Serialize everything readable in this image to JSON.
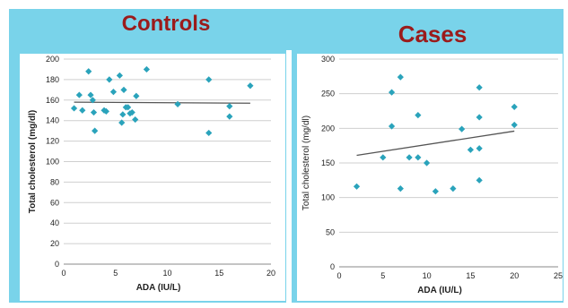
{
  "titles": {
    "controls": "Controls",
    "cases": "Cases"
  },
  "colors": {
    "banner": "#79d3ea",
    "title": "#9b1b1b",
    "marker": "#2aa3bb",
    "trend": "#555555",
    "grid": "#cfcfcf"
  },
  "chart_data": [
    {
      "type": "scatter",
      "name": "Controls",
      "xlabel": "ADA (IU/L)",
      "ylabel": "Total cholesterol (mg/dl)",
      "xlim": [
        0,
        20
      ],
      "ylim": [
        0,
        200
      ],
      "xticks": [
        0,
        5,
        10,
        15,
        20
      ],
      "yticks": [
        0,
        20,
        40,
        60,
        80,
        100,
        120,
        140,
        160,
        180,
        200
      ],
      "grid": "horizontal",
      "points": [
        [
          1.0,
          152
        ],
        [
          1.5,
          165
        ],
        [
          1.8,
          150
        ],
        [
          2.4,
          188
        ],
        [
          2.6,
          165
        ],
        [
          2.8,
          160
        ],
        [
          2.9,
          148
        ],
        [
          3.0,
          130
        ],
        [
          3.9,
          150
        ],
        [
          4.1,
          149
        ],
        [
          4.4,
          180
        ],
        [
          4.8,
          168
        ],
        [
          5.4,
          184
        ],
        [
          5.6,
          138
        ],
        [
          5.7,
          146
        ],
        [
          5.8,
          170
        ],
        [
          6.0,
          153
        ],
        [
          6.2,
          153
        ],
        [
          6.4,
          147
        ],
        [
          6.6,
          148
        ],
        [
          6.9,
          141
        ],
        [
          7.0,
          164
        ],
        [
          8.0,
          190
        ],
        [
          11.0,
          156
        ],
        [
          14.0,
          180
        ],
        [
          14.0,
          128
        ],
        [
          16.0,
          154
        ],
        [
          16.0,
          144
        ],
        [
          18.0,
          174
        ]
      ],
      "trendline": [
        [
          1,
          158
        ],
        [
          18,
          157
        ]
      ]
    },
    {
      "type": "scatter",
      "name": "Cases",
      "xlabel": "ADA (IU/L)",
      "ylabel": "Total cholesterol (mg/dl)",
      "xlim": [
        0,
        25
      ],
      "ylim": [
        0,
        300
      ],
      "xticks": [
        0,
        5,
        10,
        15,
        20,
        25
      ],
      "yticks": [
        0,
        50,
        100,
        150,
        200,
        250,
        300
      ],
      "grid": "horizontal",
      "points": [
        [
          2,
          116
        ],
        [
          5,
          158
        ],
        [
          6,
          252
        ],
        [
          6,
          203
        ],
        [
          7,
          274
        ],
        [
          7,
          113
        ],
        [
          8,
          158
        ],
        [
          9,
          219
        ],
        [
          9,
          158
        ],
        [
          10,
          150
        ],
        [
          11,
          109
        ],
        [
          13,
          113
        ],
        [
          14,
          199
        ],
        [
          15,
          169
        ],
        [
          16,
          259
        ],
        [
          16,
          216
        ],
        [
          16,
          171
        ],
        [
          16,
          125
        ],
        [
          20,
          231
        ],
        [
          20,
          205
        ]
      ],
      "trendline": [
        [
          2,
          161
        ],
        [
          20,
          196
        ]
      ]
    }
  ]
}
